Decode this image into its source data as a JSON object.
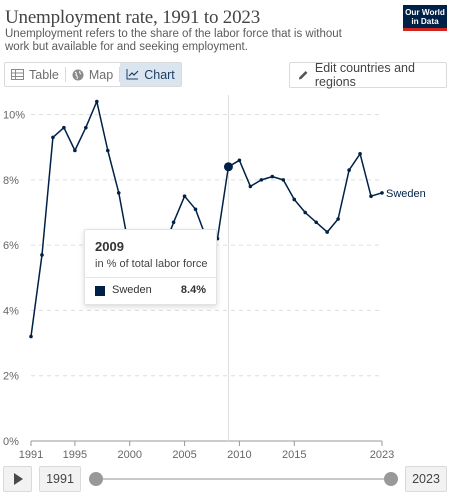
{
  "header": {
    "title": "Unemployment rate, 1991 to 2023",
    "subtitle": "Unemployment refers to the share of the labor force that is without work but available for and seeking employment.",
    "logo_line1": "Our World",
    "logo_line2": "in Data"
  },
  "tabs": [
    {
      "label": "Table",
      "icon": "table-icon"
    },
    {
      "label": "Map",
      "icon": "globe-icon"
    },
    {
      "label": "Chart",
      "icon": "line-chart-icon",
      "active": true
    }
  ],
  "edit_button": {
    "label": "Edit countries and regions",
    "icon": "pencil-icon"
  },
  "tooltip": {
    "year": "2009",
    "subtitle": "in % of total labor force",
    "entity": "Sweden",
    "value": "8.4%"
  },
  "timeline": {
    "start_label": "1991",
    "end_label": "2023",
    "start_fraction": 0,
    "end_fraction": 1
  },
  "chart_data": {
    "type": "line",
    "title": "Unemployment rate, 1991 to 2023",
    "ylabel": "",
    "xlabel": "",
    "ylim": [
      0,
      10.6
    ],
    "xlim": [
      1991,
      2023
    ],
    "y_ticks": [
      0,
      2,
      4,
      6,
      8,
      10
    ],
    "y_tick_labels": [
      "0%",
      "2%",
      "4%",
      "6%",
      "8%",
      "10%"
    ],
    "x_ticks": [
      1991,
      1995,
      2000,
      2005,
      2010,
      2015,
      2023
    ],
    "x_tick_labels": [
      "1991",
      "1995",
      "2000",
      "2005",
      "2010",
      "2015",
      "2023"
    ],
    "grid": "horizontal dashed",
    "highlight_year": 2009,
    "color": "#002147",
    "series": [
      {
        "name": "Sweden",
        "x": [
          1991,
          1992,
          1993,
          1994,
          1995,
          1996,
          1997,
          1998,
          1999,
          2000,
          2001,
          2002,
          2003,
          2004,
          2005,
          2006,
          2007,
          2008,
          2009,
          2010,
          2011,
          2012,
          2013,
          2014,
          2015,
          2016,
          2017,
          2018,
          2019,
          2020,
          2021,
          2022,
          2023
        ],
        "values": [
          3.2,
          5.7,
          9.3,
          9.6,
          8.9,
          9.6,
          10.4,
          8.9,
          7.6,
          5.8,
          5.0,
          5.1,
          5.8,
          6.7,
          7.5,
          7.1,
          6.2,
          6.2,
          8.4,
          8.6,
          7.8,
          8.0,
          8.1,
          8.0,
          7.4,
          7.0,
          6.7,
          6.4,
          6.8,
          8.3,
          8.8,
          7.5,
          7.6
        ]
      }
    ]
  }
}
